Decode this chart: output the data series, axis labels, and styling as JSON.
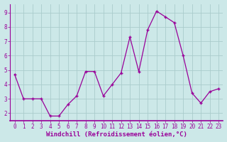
{
  "all_x": [
    0,
    1,
    2,
    3,
    4,
    5,
    6,
    7,
    8,
    9,
    10,
    11,
    12,
    13,
    14,
    15,
    16,
    17,
    18,
    19,
    20,
    21,
    22,
    23
  ],
  "all_y": [
    4.7,
    3.0,
    3.0,
    3.0,
    1.8,
    1.8,
    2.6,
    3.2,
    4.9,
    4.9,
    3.2,
    4.0,
    4.8,
    7.3,
    4.9,
    7.8,
    9.1,
    8.7,
    8.3,
    6.0,
    3.4,
    2.7,
    3.5,
    3.7
  ],
  "line_color": "#990099",
  "marker_color": "#990099",
  "bg_color": "#cce8e8",
  "grid_color": "#b0d0d0",
  "xlabel": "Windchill (Refroidissement éolien,°C)",
  "xlim": [
    -0.5,
    23.5
  ],
  "ylim": [
    1.5,
    9.6
  ],
  "xticks": [
    0,
    1,
    2,
    3,
    4,
    5,
    6,
    7,
    8,
    9,
    10,
    11,
    12,
    13,
    14,
    15,
    16,
    17,
    18,
    19,
    20,
    21,
    22,
    23
  ],
  "yticks": [
    2,
    3,
    4,
    5,
    6,
    7,
    8,
    9
  ],
  "tick_fontsize": 5.5,
  "xlabel_fontsize": 6.5
}
